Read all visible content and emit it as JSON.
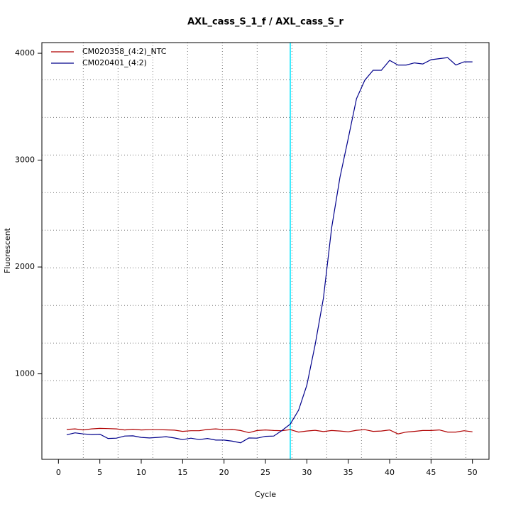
{
  "chart_data": {
    "type": "line",
    "title": "AXL_cass_S_1_f / AXL_cass_S_r",
    "xlabel": "Cycle",
    "ylabel": "Fluorescent",
    "x": [
      1,
      2,
      3,
      4,
      5,
      6,
      7,
      8,
      9,
      10,
      11,
      12,
      13,
      14,
      15,
      16,
      17,
      18,
      19,
      20,
      21,
      22,
      23,
      24,
      25,
      26,
      27,
      28,
      29,
      30,
      31,
      32,
      33,
      34,
      35,
      36,
      37,
      38,
      39,
      40,
      41,
      42,
      43,
      44,
      45,
      46,
      47,
      48,
      49,
      50
    ],
    "series": [
      {
        "name": "CM020358_(4:2)_NTC",
        "color": "#b00000",
        "values": [
          480,
          485,
          475,
          485,
          490,
          488,
          485,
          475,
          482,
          475,
          478,
          478,
          476,
          473,
          462,
          468,
          468,
          480,
          485,
          478,
          480,
          470,
          450,
          470,
          475,
          470,
          468,
          478,
          455,
          465,
          472,
          460,
          470,
          465,
          458,
          472,
          478,
          462,
          465,
          475,
          438,
          455,
          462,
          470,
          470,
          475,
          455,
          455,
          468,
          458
        ]
      },
      {
        "name": "CM020401_(4:2)",
        "color": "#00008b",
        "values": [
          430,
          448,
          438,
          432,
          435,
          395,
          398,
          418,
          420,
          405,
          400,
          405,
          412,
          400,
          385,
          398,
          385,
          395,
          380,
          380,
          370,
          355,
          400,
          398,
          415,
          418,
          470,
          530,
          660,
          893,
          1271,
          1709,
          2367,
          2839,
          3204,
          3575,
          3748,
          3841,
          3841,
          3934,
          3890,
          3890,
          3910,
          3900,
          3940,
          3950,
          3960,
          3890,
          3920,
          3920
        ]
      }
    ],
    "xlim": [
      -2,
      52
    ],
    "ylim": [
      200,
      4100
    ],
    "xticks": [
      0,
      5,
      10,
      15,
      20,
      25,
      30,
      35,
      40,
      45,
      50
    ],
    "yticks": [
      1000,
      2000,
      3000,
      4000
    ],
    "xgrid": [
      3,
      7.2,
      11.4,
      15.6,
      19.8,
      24,
      28.2,
      32.4,
      36.6,
      40.8,
      45,
      49.2
    ],
    "ygrid": [
      584,
      936,
      1288,
      1640,
      1992,
      2344,
      2696,
      3048,
      3400,
      3752
    ],
    "vline": {
      "value": 28,
      "color": "#00e5ff"
    },
    "legend": "top-left"
  }
}
